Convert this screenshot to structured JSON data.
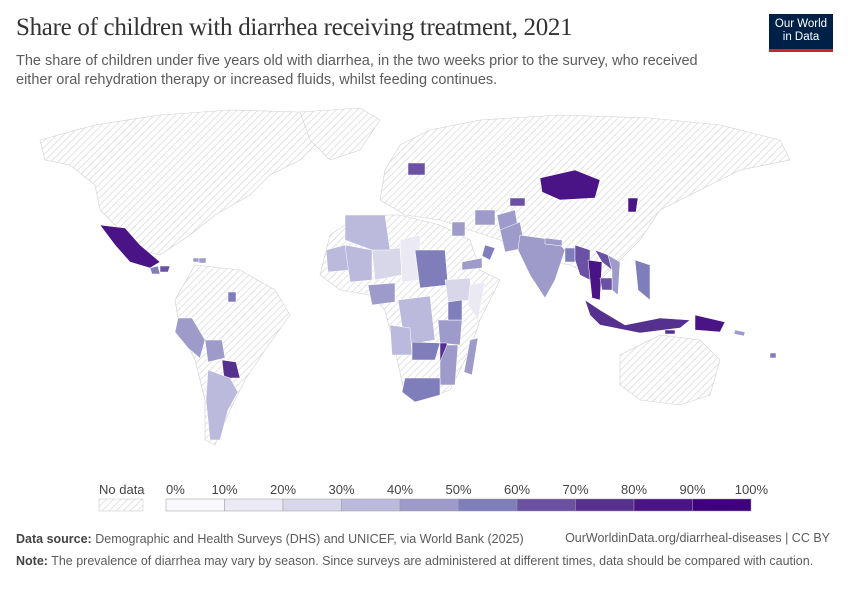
{
  "header": {
    "title": "Share of children with diarrhea receiving treatment, 2021",
    "subtitle": "The share of children under five years old with diarrhea, in the two weeks prior to the survey, who received either oral rehydration therapy or increased fluids, whilst feeding continues.",
    "logo": "Our World in Data"
  },
  "chart_data": {
    "type": "choropleth",
    "title": "Share of children with diarrhea receiving treatment, 2021",
    "legend": {
      "no_data_label": "No data",
      "ticks": [
        "0%",
        "10%",
        "20%",
        "30%",
        "40%",
        "50%",
        "60%",
        "70%",
        "80%",
        "90%",
        "100%"
      ],
      "colors": [
        "#f9f8fc",
        "#ebeaf4",
        "#d8d7e9",
        "#bbbadc",
        "#9e9bca",
        "#807dbb",
        "#6a51a3",
        "#56308f",
        "#4a1486",
        "#3f007d"
      ],
      "no_data_color": "#e0e0e0"
    },
    "regions": [
      {
        "name": "Mexico",
        "value": 85
      },
      {
        "name": "Guatemala",
        "value": 55
      },
      {
        "name": "Honduras",
        "value": 60
      },
      {
        "name": "Haiti",
        "value": 45
      },
      {
        "name": "Dominican Republic",
        "value": 40
      },
      {
        "name": "Guyana",
        "value": 50
      },
      {
        "name": "Peru",
        "value": 48
      },
      {
        "name": "Bolivia",
        "value": 42
      },
      {
        "name": "Paraguay",
        "value": 75
      },
      {
        "name": "Argentina",
        "value": 35
      },
      {
        "name": "Mauritania",
        "value": 35
      },
      {
        "name": "Mali",
        "value": 30
      },
      {
        "name": "Niger",
        "value": 20
      },
      {
        "name": "Chad",
        "value": 12
      },
      {
        "name": "Algeria",
        "value": 30
      },
      {
        "name": "Sudan",
        "value": 55
      },
      {
        "name": "Ethiopia",
        "value": 20
      },
      {
        "name": "Somalia",
        "value": 10
      },
      {
        "name": "Nigeria",
        "value": 40
      },
      {
        "name": "DR Congo",
        "value": 35
      },
      {
        "name": "Tanzania",
        "value": 45
      },
      {
        "name": "Kenya",
        "value": 50
      },
      {
        "name": "Zambia",
        "value": 50
      },
      {
        "name": "Malawi",
        "value": 70
      },
      {
        "name": "Mozambique",
        "value": 45
      },
      {
        "name": "Madagascar",
        "value": 40
      },
      {
        "name": "Angola",
        "value": 30
      },
      {
        "name": "South Africa",
        "value": 55
      },
      {
        "name": "Belarus",
        "value": 65
      },
      {
        "name": "Turkmenistan",
        "value": 40
      },
      {
        "name": "Afghanistan",
        "value": 45
      },
      {
        "name": "Pakistan",
        "value": 45
      },
      {
        "name": "India",
        "value": 45
      },
      {
        "name": "Nepal",
        "value": 45
      },
      {
        "name": "Bangladesh",
        "value": 50
      },
      {
        "name": "Myanmar",
        "value": 60
      },
      {
        "name": "Thailand",
        "value": 80
      },
      {
        "name": "Laos",
        "value": 60
      },
      {
        "name": "Vietnam",
        "value": 45
      },
      {
        "name": "Cambodia",
        "value": 60
      },
      {
        "name": "Philippines",
        "value": 55
      },
      {
        "name": "Indonesia",
        "value": 70
      },
      {
        "name": "Papua New Guinea",
        "value": 80
      },
      {
        "name": "Timor-Leste",
        "value": 75
      },
      {
        "name": "Mongolia",
        "value": 85
      },
      {
        "name": "North Korea",
        "value": 85
      },
      {
        "name": "Kyrgyzstan",
        "value": 60
      },
      {
        "name": "Yemen",
        "value": 40
      },
      {
        "name": "Oman",
        "value": 50
      },
      {
        "name": "Iraq",
        "value": 40
      },
      {
        "name": "Solomon Islands",
        "value": 45
      },
      {
        "name": "Fiji",
        "value": 55
      }
    ]
  },
  "footer": {
    "source_label": "Data source:",
    "source": "Demographic and Health Surveys (DHS) and UNICEF, via World Bank (2025)",
    "url": "OurWorldinData.org/diarrheal-diseases | CC BY",
    "note_label": "Note:",
    "note": "The prevalence of diarrhea may vary by season. Since surveys are administered at different times, data should be compared with caution."
  }
}
